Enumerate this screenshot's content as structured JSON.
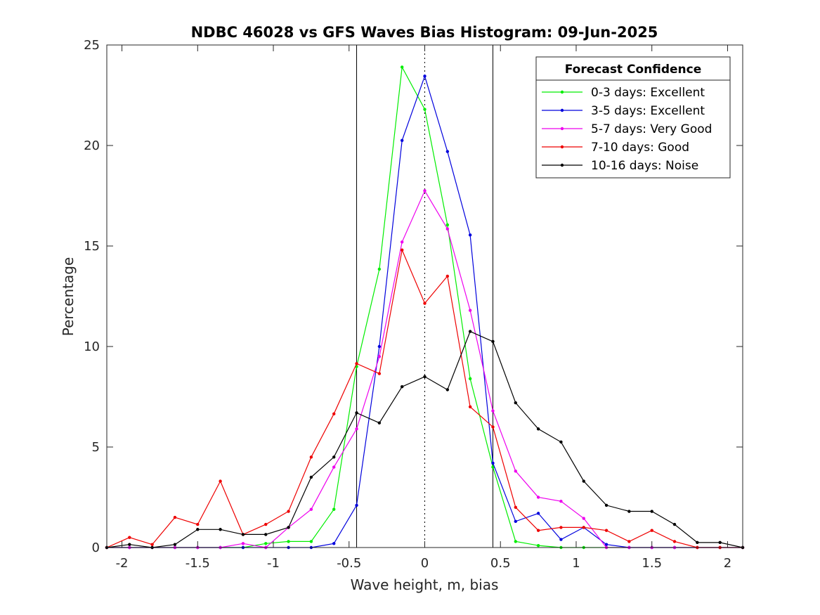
{
  "chart_data": {
    "type": "line",
    "title": "NDBC 46028 vs GFS Waves Bias Histogram: 09-Jun-2025",
    "xlabel": "Wave height, m, bias",
    "ylabel": "Percentage",
    "xlim": [
      -2.1,
      2.1
    ],
    "ylim": [
      0,
      25
    ],
    "xticks": [
      -2,
      -1.5,
      -1,
      -0.5,
      0,
      0.5,
      1,
      1.5,
      2
    ],
    "xtick_labels": [
      "-2",
      "-1.5",
      "-1",
      "-0.5",
      "0",
      "0.5",
      "1",
      "1.5",
      "2"
    ],
    "yticks": [
      0,
      5,
      10,
      15,
      20,
      25
    ],
    "ytick_labels": [
      "0",
      "5",
      "10",
      "15",
      "20",
      "25"
    ],
    "grid": false,
    "reference_lines": [
      {
        "x": -0.45,
        "style": "solid"
      },
      {
        "x": 0,
        "style": "dotted"
      },
      {
        "x": 0.45,
        "style": "solid"
      }
    ],
    "legend": {
      "title": "Forecast Confidence",
      "location": "top-right"
    },
    "x": [
      -2.1,
      -1.95,
      -1.8,
      -1.65,
      -1.5,
      -1.35,
      -1.2,
      -1.05,
      -0.9,
      -0.75,
      -0.6,
      -0.45,
      -0.3,
      -0.15,
      0,
      0.15,
      0.3,
      0.45,
      0.6,
      0.75,
      0.9,
      1.05,
      1.2,
      1.35,
      1.5,
      1.65,
      1.8,
      1.95,
      2.1
    ],
    "series": [
      {
        "name": "0-3 days: Excellent",
        "color": "#00ee00",
        "values": [
          0,
          0,
          0,
          0,
          0,
          0,
          0,
          0.2,
          0.3,
          0.3,
          1.9,
          9.0,
          13.85,
          23.9,
          21.8,
          16.05,
          8.4,
          4.0,
          0.3,
          0.1,
          0,
          0,
          0,
          0,
          0,
          0,
          0,
          0,
          0
        ]
      },
      {
        "name": "3-5 days: Excellent",
        "color": "#0000dd",
        "values": [
          0,
          0,
          0,
          0,
          0,
          0,
          0,
          0,
          0,
          0,
          0.2,
          2.1,
          10.0,
          20.25,
          23.45,
          19.7,
          15.55,
          4.2,
          1.3,
          1.7,
          0.4,
          1.0,
          0.15,
          0,
          0,
          0,
          0,
          0,
          0
        ]
      },
      {
        "name": "5-7 days: Very Good",
        "color": "#ee00ee",
        "values": [
          0,
          0,
          0,
          0,
          0,
          0,
          0.2,
          0,
          1.0,
          1.9,
          4.0,
          5.9,
          9.5,
          15.2,
          17.75,
          15.85,
          11.8,
          6.8,
          3.8,
          2.5,
          2.3,
          1.45,
          0,
          0,
          0,
          0,
          0,
          0,
          0
        ]
      },
      {
        "name": "7-10 days: Good",
        "color": "#ee0000",
        "values": [
          0,
          0.5,
          0.15,
          1.5,
          1.15,
          3.3,
          0.65,
          1.15,
          1.8,
          4.5,
          6.65,
          9.15,
          8.65,
          14.8,
          12.15,
          13.5,
          7.0,
          6.0,
          2.0,
          0.85,
          1.0,
          1.0,
          0.85,
          0.3,
          0.85,
          0.3,
          0,
          0,
          0
        ]
      },
      {
        "name": "10-16 days: Noise",
        "color": "#000000",
        "values": [
          0,
          0.15,
          0,
          0.15,
          0.9,
          0.9,
          0.65,
          0.65,
          1.0,
          3.5,
          4.5,
          6.7,
          6.2,
          8.0,
          8.5,
          7.85,
          10.75,
          10.25,
          7.2,
          5.9,
          5.25,
          3.3,
          2.1,
          1.8,
          1.8,
          1.15,
          0.25,
          0.25,
          0
        ]
      }
    ]
  }
}
